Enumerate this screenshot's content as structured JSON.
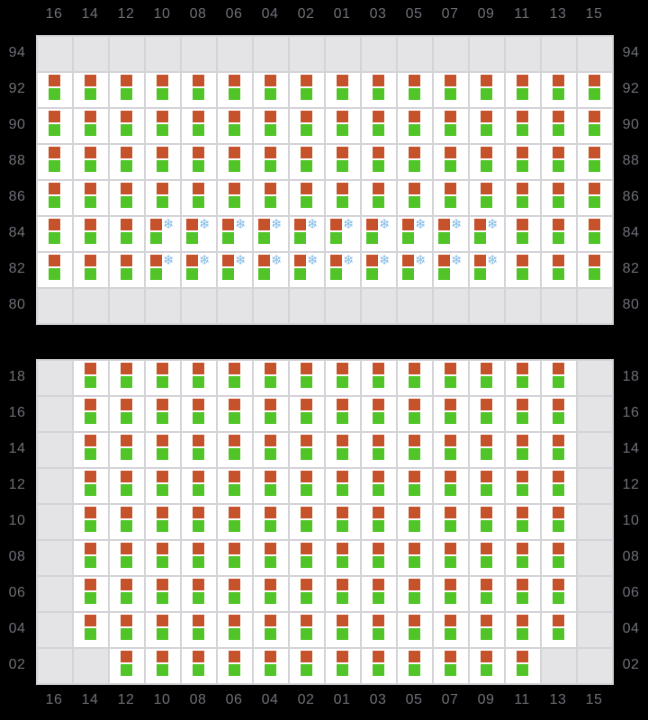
{
  "palette": {
    "bg": "#000000",
    "block_bg": "#e4e4e7",
    "empty_cell_bg": "#e4e4e7",
    "cell_bg": "#ffffff",
    "cell_border": "#d4d4d8",
    "seat_upper": "#c5522b",
    "seat_lower": "#51c528",
    "snowflake": "#85bbe5",
    "label": "#6e7078"
  },
  "icons": {
    "snowflake": "❄"
  },
  "cell_codes": {
    "E": "empty",
    "S": "seat-pair",
    "F": "seat-pair-with-snowflake"
  },
  "column_labels": [
    "16",
    "14",
    "12",
    "10",
    "08",
    "06",
    "04",
    "02",
    "01",
    "03",
    "05",
    "07",
    "09",
    "11",
    "13",
    "15"
  ],
  "blocks": [
    {
      "name": "upper-car-block",
      "rows": [
        {
          "label": "94",
          "cells": "EEEEEEEEEEEEEEEE"
        },
        {
          "label": "92",
          "cells": "SSSSSSSSSSSSSSSS"
        },
        {
          "label": "90",
          "cells": "SSSSSSSSSSSSSSSS"
        },
        {
          "label": "88",
          "cells": "SSSSSSSSSSSSSSSS"
        },
        {
          "label": "86",
          "cells": "SSSSSSSSSSSSSSSS"
        },
        {
          "label": "84",
          "cells": "SSSFFFFFFFFFFSSS"
        },
        {
          "label": "82",
          "cells": "SSSFFFFFFFFFFSSS"
        },
        {
          "label": "80",
          "cells": "EEEEEEEEEEEEEEEE"
        }
      ]
    },
    {
      "name": "lower-car-block",
      "rows": [
        {
          "label": "18",
          "cells": "ESSSSSSSSSSSSSSE"
        },
        {
          "label": "16",
          "cells": "ESSSSSSSSSSSSSSE"
        },
        {
          "label": "14",
          "cells": "ESSSSSSSSSSSSSSE"
        },
        {
          "label": "12",
          "cells": "ESSSSSSSSSSSSSSE"
        },
        {
          "label": "10",
          "cells": "ESSSSSSSSSSSSSSE"
        },
        {
          "label": "08",
          "cells": "ESSSSSSSSSSSSSSE"
        },
        {
          "label": "06",
          "cells": "ESSSSSSSSSSSSSSE"
        },
        {
          "label": "04",
          "cells": "ESSSSSSSSSSSSSSE"
        },
        {
          "label": "02",
          "cells": "EESSSSSSSSSSSSEE"
        }
      ]
    }
  ]
}
